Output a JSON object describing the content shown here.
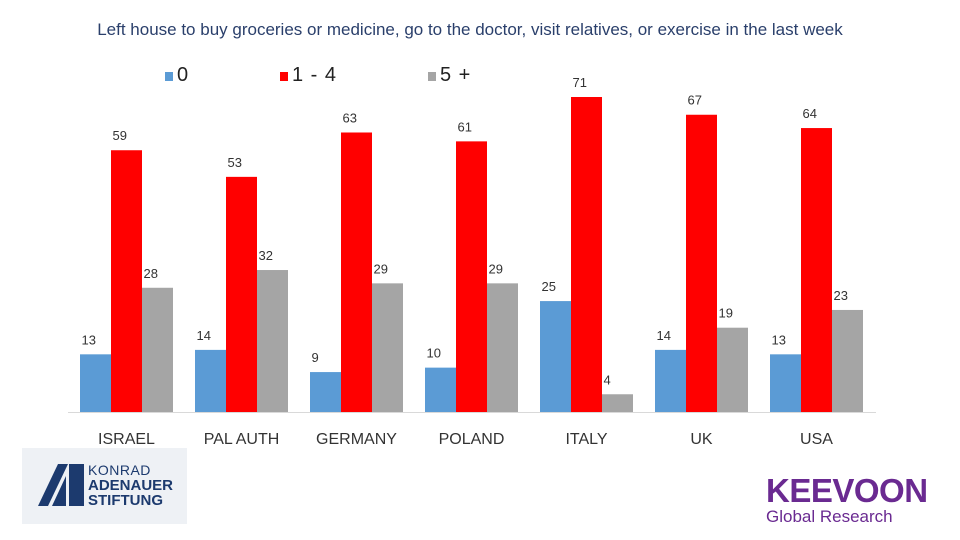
{
  "chart_data": {
    "type": "bar",
    "title": "Left house to buy groceries or medicine, go to the doctor, visit relatives, or exercise in the last week",
    "categories": [
      "ISRAEL",
      "PAL AUTH",
      "GERMANY",
      "POLAND",
      "ITALY",
      "UK",
      "USA"
    ],
    "series": [
      {
        "name": "0",
        "color": "#5b9bd5",
        "values": [
          13,
          14,
          9,
          10,
          25,
          14,
          13
        ]
      },
      {
        "name": "1 - 4",
        "color": "#ff0000",
        "values": [
          59,
          53,
          63,
          61,
          71,
          67,
          64
        ]
      },
      {
        "name": "5 +",
        "color": "#a5a5a5",
        "values": [
          28,
          32,
          29,
          29,
          4,
          19,
          23
        ]
      }
    ],
    "ylim": [
      0,
      75
    ],
    "xlabel": "",
    "ylabel": "",
    "grid": false,
    "legend_position": "top"
  },
  "logos": {
    "kas": {
      "line1": "KONRAD",
      "line2": "ADENAUER",
      "line3": "STIFTUNG"
    },
    "keevoon": {
      "name": "KEEVOON",
      "subtitle": "Global Research"
    }
  }
}
